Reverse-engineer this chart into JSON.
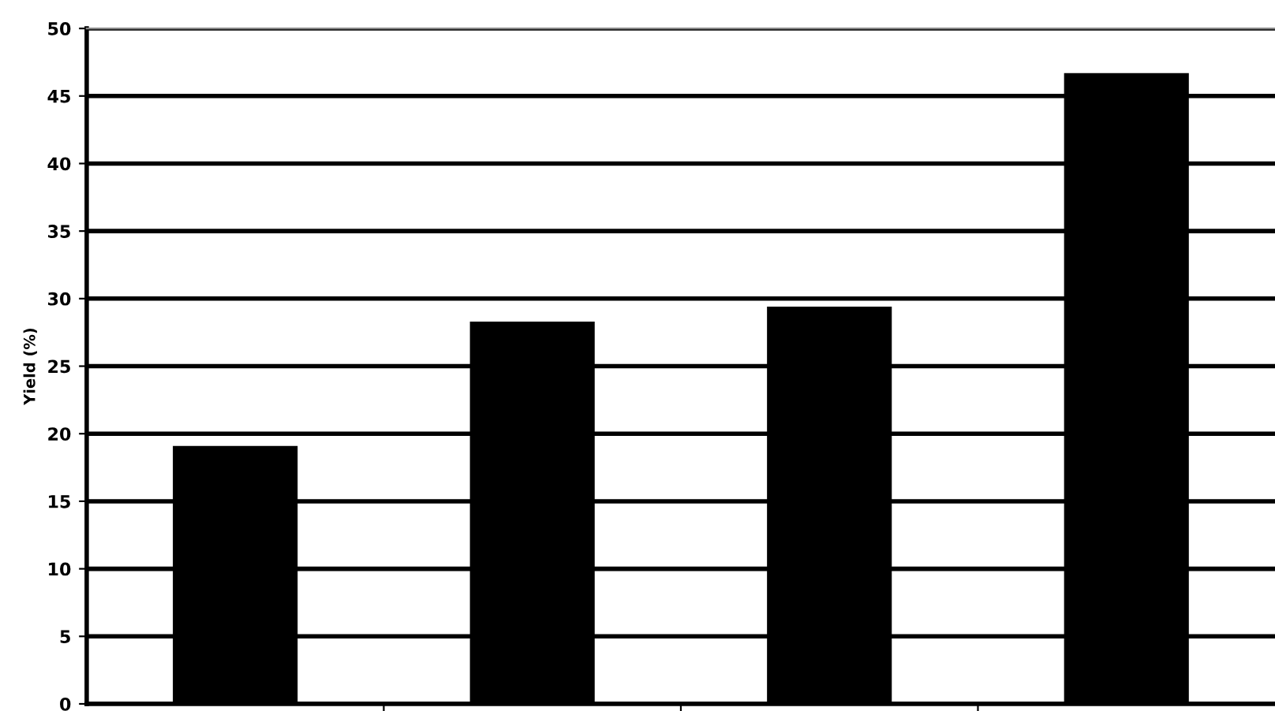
{
  "chart_data": {
    "type": "bar",
    "ylabel": "Yield (%)",
    "categories": [
      null,
      null,
      null,
      null
    ],
    "values": [
      19.1,
      28.3,
      29.4,
      46.7
    ],
    "color": "#000000",
    "ylim": [
      0,
      50
    ],
    "yticks": [
      0,
      5,
      10,
      15,
      20,
      25,
      30,
      35,
      40,
      45,
      50
    ],
    "grid": "y"
  }
}
